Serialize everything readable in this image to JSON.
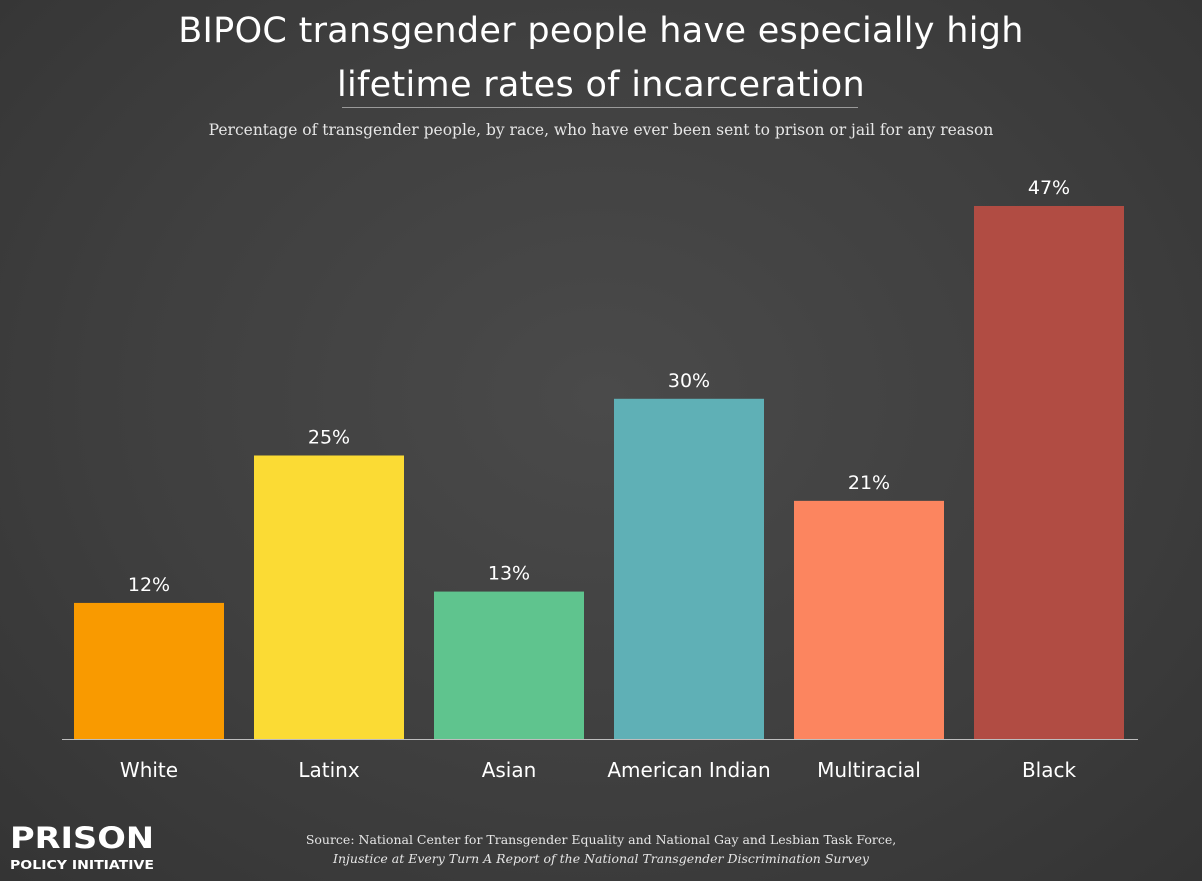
{
  "header": {
    "title_line1": "BIPOC transgender people have especially high",
    "title_line2": "lifetime rates of incarceration",
    "subtitle": "Percentage of transgender people, by race, who have ever been sent to prison or jail for any reason"
  },
  "chart_data": {
    "type": "bar",
    "categories": [
      "White",
      "Latinx",
      "Asian",
      "American Indian",
      "Multiracial",
      "Black"
    ],
    "values": [
      12,
      25,
      13,
      30,
      21,
      47
    ],
    "value_labels": [
      "12%",
      "25%",
      "13%",
      "30%",
      "21%",
      "47%"
    ],
    "colors": [
      "#f99a00",
      "#fbdb34",
      "#5fc48e",
      "#5fb0b6",
      "#fc855f",
      "#b14c43"
    ],
    "ylim": [
      0,
      47
    ],
    "grid": false,
    "legend": "none"
  },
  "footer": {
    "source_line1": "Source: National Center for Transgender Equality and National Gay and Lesbian Task Force,",
    "source_line2": "Injustice at Every Turn A Report of the National Transgender Discrimination Survey"
  },
  "logo": {
    "line1": "PRISON",
    "line2": "POLICY INITIATIVE"
  }
}
